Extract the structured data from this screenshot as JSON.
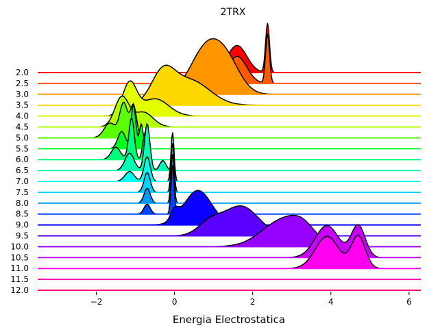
{
  "chart_data": {
    "type": "area",
    "subtype": "ridgeline",
    "title": "2TRX",
    "xlabel": "Energia Electrostatica",
    "ylabel": "",
    "xlim": [
      -3.5,
      6.3
    ],
    "x_ticks": [
      -2,
      0,
      2,
      4,
      6
    ],
    "colormap": "gist_rainbow_r",
    "series": [
      {
        "label": "2.0",
        "color": "#ff0000",
        "peaks": [
          {
            "mu": 2.38,
            "sigma": 0.05,
            "amp": 1.0
          },
          {
            "mu": 1.6,
            "sigma": 0.25,
            "amp": 0.55
          }
        ]
      },
      {
        "label": "2.5",
        "color": "#ff5a00",
        "peaks": [
          {
            "mu": 2.38,
            "sigma": 0.05,
            "amp": 1.0
          },
          {
            "mu": 1.6,
            "sigma": 0.25,
            "amp": 0.55
          }
        ]
      },
      {
        "label": "3.0",
        "color": "#ff9600",
        "peaks": [
          {
            "mu": 0.8,
            "sigma": 0.4,
            "amp": 0.9
          },
          {
            "mu": 1.35,
            "sigma": 0.35,
            "amp": 0.55
          }
        ]
      },
      {
        "label": "3.5",
        "color": "#ffd800",
        "peaks": [
          {
            "mu": -0.3,
            "sigma": 0.3,
            "amp": 0.6
          },
          {
            "mu": 0.4,
            "sigma": 0.5,
            "amp": 0.5
          }
        ]
      },
      {
        "label": "4.0",
        "color": "#e4ff00",
        "peaks": [
          {
            "mu": -1.15,
            "sigma": 0.18,
            "amp": 0.65
          },
          {
            "mu": -0.5,
            "sigma": 0.35,
            "amp": 0.35
          }
        ]
      },
      {
        "label": "4.5",
        "color": "#b4ff00",
        "peaks": [
          {
            "mu": -1.35,
            "sigma": 0.18,
            "amp": 0.6
          },
          {
            "mu": -0.8,
            "sigma": 0.25,
            "amp": 0.3
          }
        ]
      },
      {
        "label": "5.0",
        "color": "#5aff00",
        "peaks": [
          {
            "mu": -1.3,
            "sigma": 0.1,
            "amp": 0.7
          },
          {
            "mu": -1.05,
            "sigma": 0.08,
            "amp": 0.65
          },
          {
            "mu": -1.65,
            "sigma": 0.15,
            "amp": 0.3
          }
        ]
      },
      {
        "label": "5.5",
        "color": "#00ff1e",
        "peaks": [
          {
            "mu": -1.05,
            "sigma": 0.06,
            "amp": 0.9
          },
          {
            "mu": -0.85,
            "sigma": 0.05,
            "amp": 0.5
          },
          {
            "mu": -1.35,
            "sigma": 0.1,
            "amp": 0.35
          }
        ]
      },
      {
        "label": "6.0",
        "color": "#00ff78",
        "peaks": [
          {
            "mu": -1.1,
            "sigma": 0.07,
            "amp": 0.85
          },
          {
            "mu": -0.75,
            "sigma": 0.06,
            "amp": 0.55
          },
          {
            "mu": -1.5,
            "sigma": 0.12,
            "amp": 0.25
          }
        ]
      },
      {
        "label": "6.5",
        "color": "#00ffb4",
        "peaks": [
          {
            "mu": -0.7,
            "sigma": 0.07,
            "amp": 0.95
          },
          {
            "mu": -1.15,
            "sigma": 0.12,
            "amp": 0.35
          },
          {
            "mu": -0.3,
            "sigma": 0.08,
            "amp": 0.2
          }
        ]
      },
      {
        "label": "7.0",
        "color": "#00fff0",
        "peaks": [
          {
            "mu": -0.05,
            "sigma": 0.04,
            "amp": 1.0
          },
          {
            "mu": -0.7,
            "sigma": 0.08,
            "amp": 0.5
          },
          {
            "mu": -1.15,
            "sigma": 0.12,
            "amp": 0.2
          }
        ]
      },
      {
        "label": "7.5",
        "color": "#00d2ff",
        "peaks": [
          {
            "mu": -0.05,
            "sigma": 0.04,
            "amp": 1.0
          },
          {
            "mu": -0.7,
            "sigma": 0.08,
            "amp": 0.4
          }
        ]
      },
      {
        "label": "8.0",
        "color": "#0096ff",
        "peaks": [
          {
            "mu": -0.05,
            "sigma": 0.04,
            "amp": 1.0
          },
          {
            "mu": -0.7,
            "sigma": 0.08,
            "amp": 0.3
          }
        ]
      },
      {
        "label": "8.5",
        "color": "#0046ff",
        "peaks": [
          {
            "mu": -0.05,
            "sigma": 0.04,
            "amp": 1.0
          },
          {
            "mu": -0.7,
            "sigma": 0.08,
            "amp": 0.2
          }
        ]
      },
      {
        "label": "9.0",
        "color": "#0a00ff",
        "peaks": [
          {
            "mu": 0.6,
            "sigma": 0.35,
            "amp": 0.7
          },
          {
            "mu": 0.0,
            "sigma": 0.1,
            "amp": 0.2
          }
        ]
      },
      {
        "label": "9.5",
        "color": "#5a00ff",
        "peaks": [
          {
            "mu": 1.7,
            "sigma": 0.45,
            "amp": 0.6
          },
          {
            "mu": 0.9,
            "sigma": 0.3,
            "amp": 0.25
          }
        ]
      },
      {
        "label": "10.0",
        "color": "#9600ff",
        "peaks": [
          {
            "mu": 2.8,
            "sigma": 0.55,
            "amp": 0.55
          },
          {
            "mu": 3.3,
            "sigma": 0.3,
            "amp": 0.2
          }
        ]
      },
      {
        "label": "10.5",
        "color": "#c800ff",
        "peaks": [
          {
            "mu": 3.9,
            "sigma": 0.3,
            "amp": 0.65
          },
          {
            "mu": 4.7,
            "sigma": 0.18,
            "amp": 0.65
          }
        ]
      },
      {
        "label": "11.0",
        "color": "#ff00f0",
        "peaks": [
          {
            "mu": 3.9,
            "sigma": 0.3,
            "amp": 0.65
          },
          {
            "mu": 4.7,
            "sigma": 0.18,
            "amp": 0.65
          }
        ]
      },
      {
        "label": "11.5",
        "color": "#ff00b4",
        "peaks": []
      },
      {
        "label": "12.0",
        "color": "#ff0078",
        "peaks": []
      }
    ]
  }
}
